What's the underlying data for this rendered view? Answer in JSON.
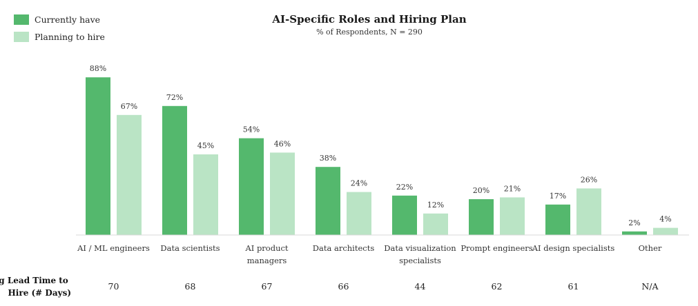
{
  "chart_data": {
    "type": "bar",
    "title": "AI-Specific Roles and Hiring Plan",
    "subtitle": "% of Respondents, N = 290",
    "value_suffix": "%",
    "ylim": [
      0,
      100
    ],
    "grid": false,
    "legend_placement": "top-left",
    "categories": [
      [
        "AI / ML engineers"
      ],
      [
        "Data scientists"
      ],
      [
        "AI product",
        "managers"
      ],
      [
        "Data architects"
      ],
      [
        "Data visualization",
        "specialists"
      ],
      [
        "Prompt engineers"
      ],
      [
        "AI design specialists"
      ],
      [
        "Other"
      ]
    ],
    "series": [
      {
        "name": "Currently have",
        "color": "#54b86d",
        "values": [
          88,
          72,
          54,
          38,
          22,
          20,
          17,
          2
        ]
      },
      {
        "name": "Planning to hire",
        "color": "#bae4c5",
        "values": [
          67,
          45,
          46,
          24,
          12,
          21,
          26,
          4
        ]
      }
    ],
    "lead_time": {
      "label": [
        "Avg Lead Time to",
        "Hire (# Days)"
      ],
      "values": [
        "70",
        "68",
        "67",
        "66",
        "44",
        "62",
        "61",
        "N/A"
      ]
    }
  }
}
